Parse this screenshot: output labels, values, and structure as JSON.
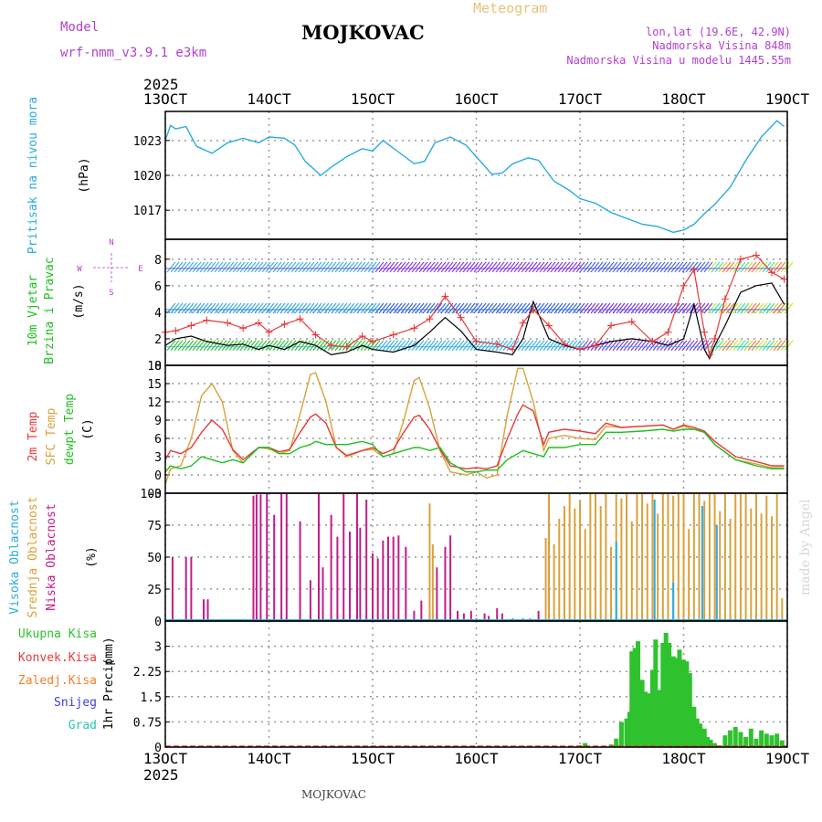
{
  "header": {
    "model_label": "Model",
    "model_name": "wrf-nmm_v3.9.1 e3km",
    "station": "MOJKOVAC",
    "meteogram": "Meteogram",
    "coords": "lon,lat (19.6E, 42.9N)",
    "elevation": "Nadmorska Visina 848m",
    "model_elevation": "Nadmorska Visina u modelu 1445.55m",
    "footer_station": "MOJKOVAC",
    "watermark": "made by Angel"
  },
  "colors": {
    "pressure": "#29abe2",
    "wind_label": "#1fbf1f",
    "temp_2m": "#e83a3a",
    "temp_sfc": "#d9a23a",
    "dewpoint": "#1fbf1f",
    "cloud_high": "#29abe2",
    "cloud_mid": "#d9a23a",
    "cloud_low": "#c21c8a",
    "precip": "#2ec22e",
    "convective": "#e83a3a",
    "freezing": "#f07f2a",
    "snow": "#3d3dd6",
    "hail": "#27c7b5",
    "magenta": "#b23fd1",
    "gold": "#e8c27a"
  },
  "chart_data": {
    "type": "line",
    "time_axis": {
      "year": "2025",
      "ticks": [
        "13OCT",
        "14OCT",
        "15OCT",
        "16OCT",
        "17OCT",
        "18OCT",
        "19OCT"
      ],
      "range_days": [
        13,
        19
      ]
    },
    "pressure": {
      "ylabel_1": "Pritisak na nivou mora",
      "unit": "(hPa)",
      "ylim": [
        1014.5,
        1025.5
      ],
      "yticks": [
        "1017",
        "1020",
        "1023"
      ],
      "x": [
        13.0,
        13.05,
        13.1,
        13.2,
        13.3,
        13.45,
        13.6,
        13.75,
        13.9,
        14.0,
        14.15,
        14.25,
        14.35,
        14.5,
        14.6,
        14.75,
        14.9,
        15.0,
        15.1,
        15.25,
        15.4,
        15.5,
        15.6,
        15.75,
        15.9,
        16.0,
        16.15,
        16.25,
        16.35,
        16.5,
        16.6,
        16.75,
        16.9,
        17.0,
        17.15,
        17.3,
        17.45,
        17.6,
        17.75,
        17.9,
        18.0,
        18.1,
        18.2,
        18.3,
        18.45,
        18.6,
        18.75,
        18.9,
        18.97
      ],
      "values": [
        1023.0,
        1024.3,
        1024.0,
        1024.2,
        1022.5,
        1021.9,
        1022.8,
        1023.2,
        1022.8,
        1023.3,
        1023.2,
        1022.6,
        1021.2,
        1020.0,
        1020.7,
        1021.6,
        1022.3,
        1022.1,
        1023.0,
        1022.0,
        1021.0,
        1021.2,
        1022.8,
        1023.3,
        1022.6,
        1021.6,
        1020.1,
        1020.2,
        1021.0,
        1021.5,
        1021.3,
        1019.5,
        1018.7,
        1018.0,
        1017.6,
        1016.8,
        1016.3,
        1015.8,
        1015.6,
        1015.1,
        1015.3,
        1015.8,
        1016.7,
        1017.5,
        1019.0,
        1021.3,
        1023.3,
        1024.7,
        1024.2
      ]
    },
    "wind": {
      "ylabel_1": "10m Vjetar",
      "ylabel_2": "Brzina i Pravac",
      "unit": "(m/s)",
      "compass": [
        "N",
        "E",
        "S",
        "W"
      ],
      "ylim": [
        0,
        9.5
      ],
      "yticks": [
        "0",
        "2",
        "4",
        "6",
        "8"
      ],
      "barb_rows": [
        7.3,
        4.2,
        1.4
      ],
      "x": [
        13.0,
        13.1,
        13.25,
        13.4,
        13.6,
        13.75,
        13.9,
        14.0,
        14.15,
        14.3,
        14.45,
        14.6,
        14.75,
        14.9,
        15.0,
        15.2,
        15.4,
        15.55,
        15.7,
        15.85,
        16.0,
        16.2,
        16.35,
        16.45,
        16.55,
        16.7,
        16.85,
        17.0,
        17.15,
        17.3,
        17.5,
        17.7,
        17.85,
        18.0,
        18.1,
        18.2,
        18.25,
        18.3,
        18.4,
        18.55,
        18.7,
        18.85,
        18.97
      ],
      "speed": [
        1.5,
        2.0,
        2.2,
        1.8,
        1.5,
        1.6,
        1.2,
        1.5,
        1.2,
        1.8,
        1.5,
        0.8,
        1.0,
        1.5,
        1.2,
        1.0,
        1.5,
        2.5,
        3.6,
        2.6,
        1.2,
        1.0,
        0.8,
        2.0,
        4.8,
        2.0,
        1.5,
        1.2,
        1.5,
        1.8,
        2.0,
        1.8,
        1.5,
        2.0,
        4.6,
        1.2,
        0.5,
        1.5,
        3.0,
        5.5,
        6.0,
        6.2,
        4.6
      ],
      "gust": [
        2.5,
        2.6,
        3.0,
        3.4,
        3.2,
        2.8,
        3.2,
        2.5,
        3.1,
        3.5,
        2.3,
        1.5,
        1.4,
        2.2,
        1.8,
        2.3,
        2.8,
        3.5,
        5.2,
        3.6,
        1.8,
        1.6,
        1.2,
        3.2,
        4.2,
        3.0,
        1.6,
        1.2,
        1.5,
        3.0,
        3.3,
        1.8,
        2.5,
        6.0,
        7.2,
        2.5,
        0.8,
        2.0,
        5.0,
        8.0,
        8.3,
        7.0,
        6.5
      ]
    },
    "temperature": {
      "ylabel_1": "2m Temp",
      "ylabel_2": "SFC Temp",
      "ylabel_3": "dewpt Temp",
      "unit": "(C)",
      "ylim": [
        -3,
        18
      ],
      "yticks": [
        "-3",
        "0",
        "3",
        "6",
        "9",
        "12",
        "15",
        "18"
      ],
      "x": [
        13.0,
        13.05,
        13.15,
        13.25,
        13.35,
        13.45,
        13.55,
        13.65,
        13.75,
        13.9,
        14.0,
        14.1,
        14.2,
        14.3,
        14.4,
        14.45,
        14.55,
        14.65,
        14.75,
        14.9,
        15.0,
        15.1,
        15.2,
        15.3,
        15.4,
        15.45,
        15.55,
        15.65,
        15.75,
        15.9,
        16.0,
        16.1,
        16.2,
        16.3,
        16.4,
        16.45,
        16.55,
        16.65,
        16.7,
        16.85,
        17.0,
        17.15,
        17.25,
        17.4,
        17.6,
        17.8,
        17.9,
        18.0,
        18.1,
        18.2,
        18.3,
        18.5,
        18.7,
        18.85,
        18.97
      ],
      "t2m": [
        2.5,
        4.0,
        3.5,
        4.5,
        7.0,
        9.0,
        7.5,
        4.2,
        2.5,
        4.5,
        4.5,
        3.8,
        4.2,
        7.0,
        9.5,
        10.0,
        8.5,
        4.5,
        3.2,
        4.0,
        4.5,
        3.5,
        4.2,
        7.0,
        9.5,
        9.8,
        7.5,
        4.2,
        1.5,
        1.0,
        1.2,
        1.0,
        1.5,
        6.0,
        10.0,
        11.5,
        10.5,
        5.0,
        7.0,
        7.5,
        7.2,
        6.8,
        8.5,
        7.8,
        8.0,
        8.2,
        7.5,
        8.2,
        7.8,
        7.2,
        5.5,
        3.0,
        2.2,
        1.5,
        1.5
      ],
      "tsfc": [
        -1.5,
        1.0,
        1.5,
        6.0,
        13.0,
        15.0,
        12.0,
        4.0,
        2.0,
        4.5,
        4.3,
        3.5,
        4.0,
        10.0,
        16.5,
        16.8,
        12.0,
        4.5,
        3.0,
        4.0,
        4.2,
        3.0,
        3.5,
        9.0,
        15.5,
        16.0,
        11.0,
        4.0,
        0.5,
        0.0,
        0.5,
        -0.5,
        0.0,
        10.0,
        17.5,
        17.5,
        12.0,
        4.0,
        6.0,
        6.5,
        6.0,
        5.8,
        8.0,
        7.8,
        8.0,
        8.2,
        7.5,
        8.0,
        7.5,
        7.0,
        5.0,
        2.5,
        1.8,
        1.2,
        1.2
      ],
      "dewpt": [
        0.5,
        1.5,
        1.0,
        1.5,
        3.0,
        2.5,
        2.0,
        2.5,
        2.0,
        4.5,
        4.5,
        3.5,
        3.5,
        4.5,
        5.0,
        5.5,
        5.0,
        5.0,
        5.0,
        5.5,
        5.0,
        3.0,
        3.5,
        4.0,
        4.5,
        4.5,
        4.0,
        4.5,
        2.0,
        0.5,
        0.5,
        0.8,
        0.8,
        2.5,
        3.5,
        4.0,
        3.5,
        3.0,
        4.5,
        4.5,
        5.0,
        5.0,
        7.0,
        7.0,
        7.2,
        7.5,
        7.2,
        7.5,
        7.5,
        7.0,
        5.0,
        2.5,
        1.5,
        1.0,
        1.0
      ]
    },
    "clouds": {
      "ylabel_1": "Visoka Oblacnost",
      "ylabel_2": "Srednja Oblacnost",
      "ylabel_3": "Niska Oblacnost",
      "unit": "(%)",
      "ylim": [
        0,
        100
      ],
      "yticks": [
        "0",
        "25",
        "50",
        "75",
        "100"
      ],
      "low_x": [
        13.07,
        13.2,
        13.25,
        13.37,
        13.41,
        13.85,
        13.88,
        13.92,
        13.98,
        14.05,
        14.12,
        14.17,
        14.3,
        14.4,
        14.48,
        14.52,
        14.6,
        14.66,
        14.72,
        14.78,
        14.85,
        14.88,
        14.94,
        15.0,
        15.05,
        15.1,
        15.15,
        15.2,
        15.25,
        15.32,
        15.4,
        15.47,
        15.55,
        15.62,
        15.7,
        15.75,
        15.82,
        15.88,
        15.95,
        16.0,
        16.08,
        16.12,
        16.2,
        16.25,
        16.35,
        16.45,
        16.52,
        16.6,
        16.7
      ],
      "low_val": [
        50,
        50,
        50,
        17,
        17,
        98,
        99,
        99,
        100,
        83,
        100,
        100,
        78,
        32,
        100,
        42,
        83,
        66,
        100,
        70,
        100,
        73,
        95,
        53,
        49,
        63,
        66,
        66,
        67,
        58,
        8,
        16,
        6,
        42,
        58,
        67,
        8,
        6,
        8,
        2,
        6,
        4,
        10,
        6,
        2,
        2,
        2,
        8,
        98
      ],
      "mid_x": [
        15.55,
        15.58,
        16.67,
        16.7,
        16.75,
        16.8,
        16.85,
        16.9,
        16.95,
        17.0,
        17.05,
        17.1,
        17.15,
        17.2,
        17.25,
        17.3,
        17.35,
        17.4,
        17.45,
        17.5,
        17.55,
        17.6,
        17.65,
        17.7,
        17.75,
        17.8,
        17.85,
        17.9,
        17.95,
        18.0,
        18.05,
        18.1,
        18.15,
        18.2,
        18.25,
        18.3,
        18.35,
        18.4,
        18.45,
        18.5,
        18.55,
        18.6,
        18.65,
        18.7,
        18.75,
        18.8,
        18.85,
        18.9,
        18.95
      ],
      "mid_val": [
        92,
        60,
        65,
        100,
        60,
        80,
        90,
        100,
        88,
        94,
        72,
        100,
        100,
        90,
        100,
        58,
        100,
        96,
        100,
        78,
        100,
        100,
        92,
        100,
        84,
        100,
        100,
        98,
        100,
        100,
        72,
        100,
        100,
        94,
        100,
        100,
        86,
        100,
        80,
        100,
        100,
        100,
        88,
        100,
        84,
        98,
        82,
        100,
        18
      ],
      "high_x": [
        17.35,
        17.72,
        17.9,
        18.18,
        18.32
      ],
      "high_val": [
        62,
        95,
        30,
        90,
        75
      ]
    },
    "precip": {
      "ylabel_1": "1hr Precip",
      "unit": "(mm)",
      "ylim": [
        0,
        3.75
      ],
      "yticks": [
        "0",
        "0.75",
        "1.5",
        "2.25",
        "3"
      ],
      "legend": [
        "Ukupna Kisa",
        "Konvek.Kisa",
        "Zaledj.Kisa",
        "Snijeg",
        "Grad"
      ],
      "x": [
        13.95,
        14.85,
        15.1,
        17.0,
        17.05,
        17.3,
        17.35,
        17.4,
        17.45,
        17.48,
        17.5,
        17.53,
        17.56,
        17.6,
        17.63,
        17.66,
        17.7,
        17.73,
        17.76,
        17.8,
        17.83,
        17.86,
        17.9,
        17.93,
        17.96,
        18.0,
        18.03,
        18.06,
        18.1,
        18.13,
        18.16,
        18.2,
        18.23,
        18.26,
        18.3,
        18.35,
        18.4,
        18.45,
        18.5,
        18.55,
        18.6,
        18.65,
        18.7,
        18.75,
        18.8,
        18.85,
        18.9,
        18.95
      ],
      "values": [
        0.03,
        0.03,
        0.03,
        0.05,
        0.12,
        0.08,
        0.25,
        0.75,
        0.85,
        1.05,
        2.85,
        2.95,
        3.15,
        2.0,
        1.65,
        1.6,
        2.3,
        3.2,
        1.7,
        3.1,
        3.4,
        3.1,
        2.7,
        2.65,
        2.9,
        2.6,
        2.55,
        2.2,
        1.2,
        0.85,
        0.7,
        0.55,
        0.3,
        0.22,
        0.12,
        0.05,
        0.35,
        0.5,
        0.6,
        0.45,
        0.3,
        0.55,
        0.25,
        0.5,
        0.4,
        0.35,
        0.4,
        0.2
      ]
    }
  }
}
